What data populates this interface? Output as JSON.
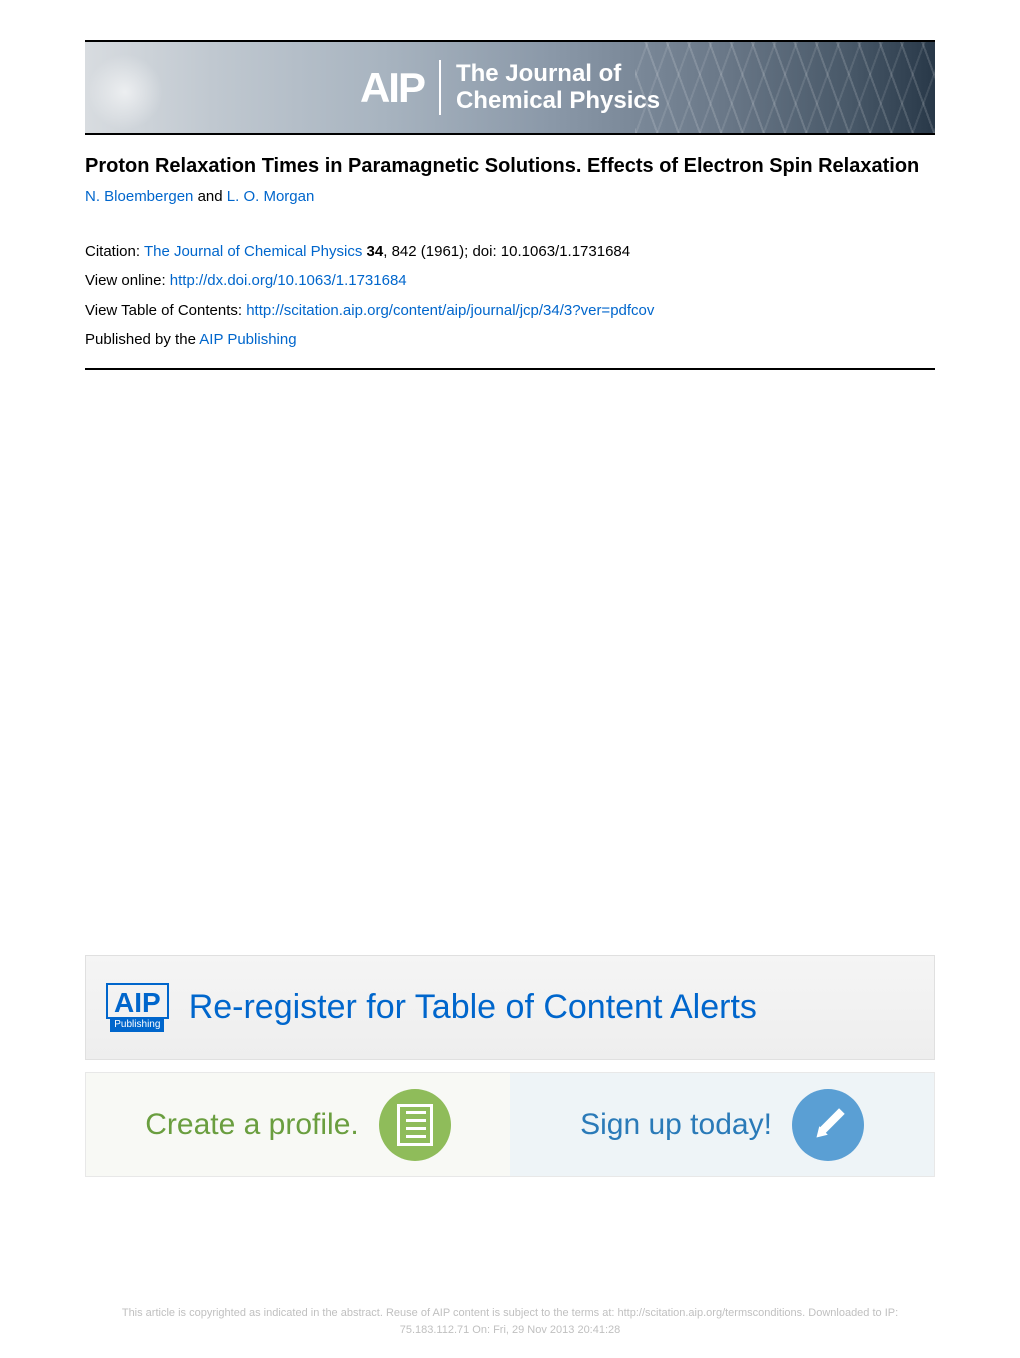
{
  "banner": {
    "logo": "AIP",
    "journal_line1": "The Journal of",
    "journal_line2": "Chemical Physics"
  },
  "article": {
    "title": "Proton Relaxation Times in Paramagnetic Solutions. Effects of Electron Spin Relaxation",
    "author1": "N. Bloembergen",
    "author_separator": " and ",
    "author2": "L. O. Morgan"
  },
  "citation": {
    "citation_label": "Citation: ",
    "journal_name": "The Journal of Chemical Physics",
    "citation_details": " 34, 842 (1961); doi: 10.1063/1.1731684",
    "volume": "34",
    "view_online_label": "View online: ",
    "view_online_url": "http://dx.doi.org/10.1063/1.1731684",
    "toc_label": "View Table of Contents: ",
    "toc_url": "http://scitation.aip.org/content/aip/journal/jcp/34/3?ver=pdfcov",
    "published_label": "Published by the ",
    "publisher": "AIP Publishing"
  },
  "ad1": {
    "logo_main": "AIP",
    "logo_sub": "Publishing",
    "text": "Re-register for Table of Content Alerts"
  },
  "ad2": {
    "left_text": "Create a profile.",
    "right_text": "Sign up today!"
  },
  "footer": {
    "line1": "This article is copyrighted as indicated in the abstract. Reuse of AIP content is subject to the terms at: http://scitation.aip.org/termsconditions. Downloaded to  IP:",
    "line2": "75.183.112.71 On: Fri, 29 Nov 2013 20:41:28"
  },
  "colors": {
    "link_color": "#0066cc",
    "text_color": "#000000",
    "footer_color": "#c0c0c0",
    "ad1_bg": "#f0f0f0",
    "ad2_green": "#8fbc5a",
    "ad2_blue": "#5a9fd4"
  }
}
